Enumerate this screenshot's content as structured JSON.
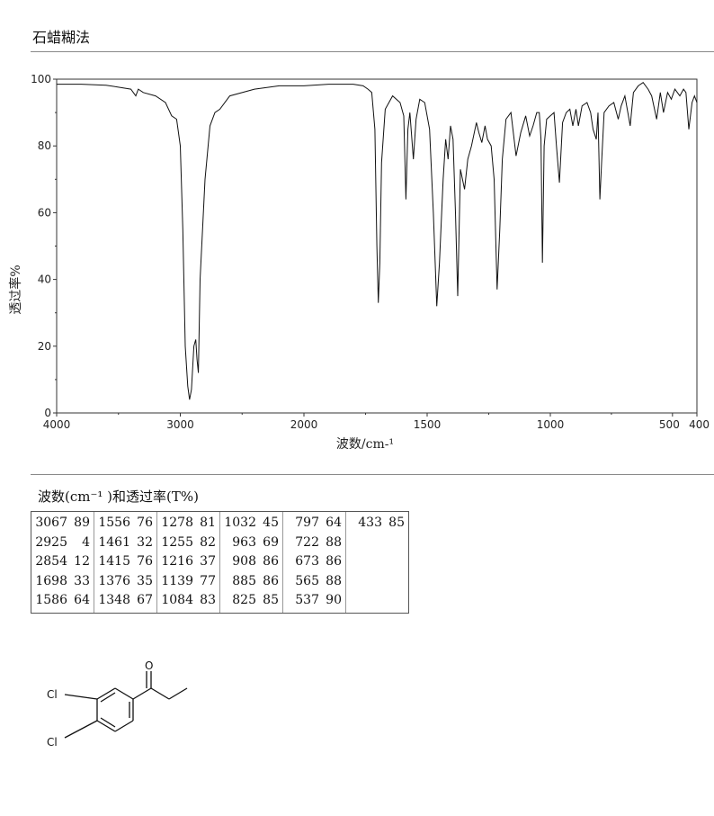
{
  "method": "石蜡糊法",
  "chart_data": {
    "type": "line",
    "title": "",
    "xlabel": "波数/cm-¹",
    "ylabel": "透过率%",
    "xlim": [
      4000,
      400
    ],
    "ylim": [
      0,
      100
    ],
    "x_ticks": [
      4000,
      3000,
      2000,
      1500,
      1000,
      500,
      400
    ],
    "x_tick_labels": [
      "4000",
      "3000",
      "2000",
      "1500",
      "1000",
      "500",
      "400"
    ],
    "y_ticks": [
      0,
      20,
      40,
      60,
      80,
      100
    ],
    "y_tick_labels": [
      "0",
      "20",
      "40",
      "60",
      "80",
      "100"
    ],
    "grid": false,
    "series": [
      {
        "x": [
          4000,
          3800,
          3600,
          3400,
          3360,
          3340,
          3300,
          3200,
          3120,
          3070,
          3030,
          3000,
          2980,
          2960,
          2940,
          2925,
          2910,
          2890,
          2875,
          2865,
          2854,
          2840,
          2800,
          2760,
          2720,
          2680,
          2600,
          2400,
          2200,
          2000,
          1900,
          1800,
          1760,
          1740,
          1725,
          1712,
          1704,
          1698,
          1692,
          1685,
          1670,
          1640,
          1610,
          1595,
          1586,
          1578,
          1570,
          1556,
          1545,
          1530,
          1510,
          1490,
          1475,
          1461,
          1450,
          1435,
          1425,
          1415,
          1405,
          1395,
          1385,
          1376,
          1365,
          1348,
          1335,
          1320,
          1300,
          1290,
          1278,
          1265,
          1255,
          1240,
          1228,
          1216,
          1205,
          1195,
          1180,
          1160,
          1139,
          1120,
          1100,
          1084,
          1070,
          1055,
          1045,
          1038,
          1032,
          1025,
          1015,
          1000,
          985,
          975,
          963,
          950,
          935,
          920,
          908,
          895,
          885,
          870,
          850,
          835,
          825,
          812,
          805,
          797,
          790,
          780,
          760,
          740,
          722,
          710,
          695,
          673,
          660,
          640,
          620,
          600,
          585,
          565,
          550,
          537,
          520,
          505,
          490,
          470,
          455,
          445,
          433,
          420,
          410,
          400
        ],
        "y": [
          98.5,
          98.5,
          98.2,
          97,
          95,
          97,
          96,
          95,
          93,
          89,
          88,
          80,
          55,
          20,
          8,
          4,
          7,
          20,
          22,
          16,
          12,
          40,
          70,
          86,
          90,
          91,
          95,
          97,
          98,
          98,
          98.5,
          98.5,
          98,
          97,
          96,
          85,
          50,
          33,
          45,
          75,
          91,
          95,
          93,
          89,
          64,
          85,
          90,
          76,
          88,
          94,
          93,
          85,
          60,
          32,
          45,
          70,
          82,
          76,
          86,
          82,
          60,
          35,
          73,
          67,
          76,
          80,
          87,
          84,
          81,
          86,
          82,
          80,
          70,
          37,
          55,
          76,
          88,
          90,
          77,
          84,
          89,
          83,
          86,
          90,
          90,
          82,
          45,
          80,
          88,
          89,
          90,
          80,
          69,
          87,
          90,
          91,
          86,
          91,
          86,
          92,
          93,
          90,
          85,
          82,
          90,
          64,
          75,
          90,
          92,
          93,
          88,
          92,
          95,
          86,
          96,
          98,
          99,
          97,
          95,
          88,
          96,
          90,
          96,
          94,
          97,
          95,
          97,
          96,
          85,
          93,
          95,
          93
        ]
      }
    ]
  },
  "table": {
    "title": "波数(cm⁻¹ )和透过率(T%)",
    "columns": [
      [
        [
          "3067",
          "89"
        ],
        [
          "2925",
          "4"
        ],
        [
          "2854",
          "12"
        ],
        [
          "1698",
          "33"
        ],
        [
          "1586",
          "64"
        ]
      ],
      [
        [
          "1556",
          "76"
        ],
        [
          "1461",
          "32"
        ],
        [
          "1415",
          "76"
        ],
        [
          "1376",
          "35"
        ],
        [
          "1348",
          "67"
        ]
      ],
      [
        [
          "1278",
          "81"
        ],
        [
          "1255",
          "82"
        ],
        [
          "1216",
          "37"
        ],
        [
          "1139",
          "77"
        ],
        [
          "1084",
          "83"
        ]
      ],
      [
        [
          "1032",
          "45"
        ],
        [
          "963",
          "69"
        ],
        [
          "908",
          "86"
        ],
        [
          "885",
          "86"
        ],
        [
          "825",
          "85"
        ]
      ],
      [
        [
          "797",
          "64"
        ],
        [
          "722",
          "88"
        ],
        [
          "673",
          "86"
        ],
        [
          "565",
          "88"
        ],
        [
          "537",
          "90"
        ]
      ],
      [
        [
          "433",
          "85"
        ]
      ]
    ]
  },
  "structure": {
    "atom_labels": [
      "Cl",
      "Cl",
      "O"
    ]
  }
}
